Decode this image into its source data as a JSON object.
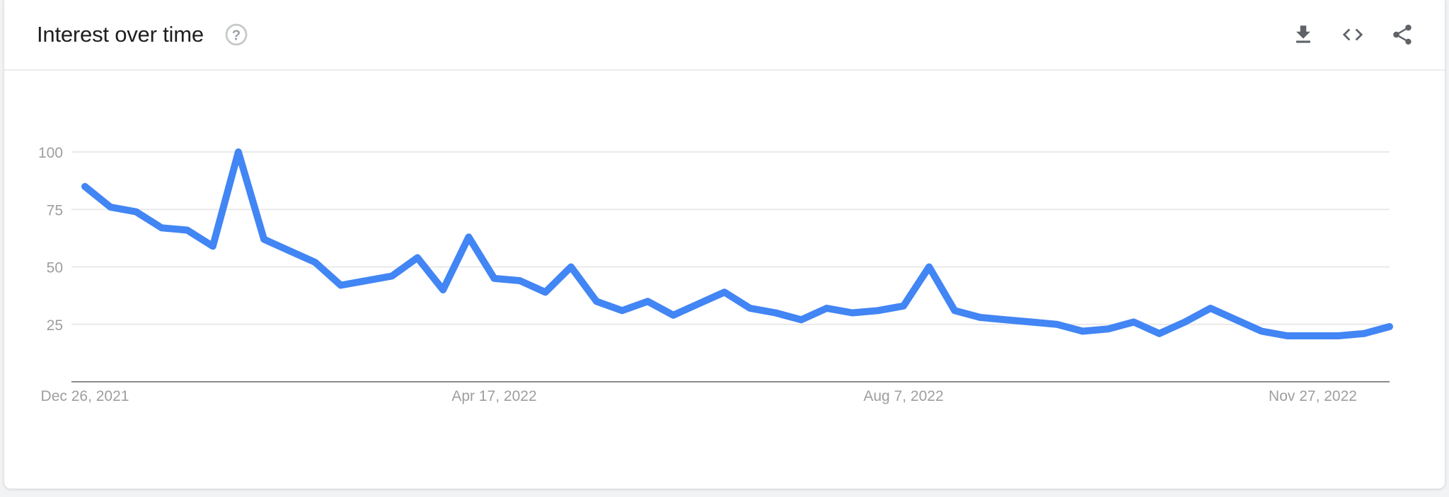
{
  "header": {
    "title": "Interest over time",
    "help_glyph": "?"
  },
  "chart_data": {
    "type": "line",
    "title": "Interest over time",
    "frequency": "weekly",
    "x_tick_labels": [
      "Dec 26, 2021",
      "Apr 17, 2022",
      "Aug 7, 2022",
      "Nov 27, 2022"
    ],
    "x_tick_indices": [
      0,
      16,
      32,
      48
    ],
    "y_ticks": [
      25,
      50,
      75,
      100
    ],
    "ylim": [
      0,
      100
    ],
    "grid": true,
    "legend": false,
    "values": [
      85,
      76,
      74,
      67,
      66,
      59,
      100,
      62,
      57,
      52,
      42,
      44,
      46,
      54,
      40,
      63,
      45,
      44,
      39,
      50,
      35,
      31,
      35,
      29,
      34,
      39,
      32,
      30,
      27,
      32,
      30,
      31,
      33,
      50,
      31,
      28,
      27,
      26,
      25,
      22,
      23,
      26,
      21,
      26,
      32,
      27,
      22,
      20,
      20,
      20,
      21,
      24
    ],
    "colors": {
      "line": "#4285f4",
      "grid": "#e9e9e9",
      "axis": "#8a8a8a",
      "tick_label": "#9e9e9e",
      "title": "#1f1f1f",
      "icon": "#5f6368"
    }
  }
}
